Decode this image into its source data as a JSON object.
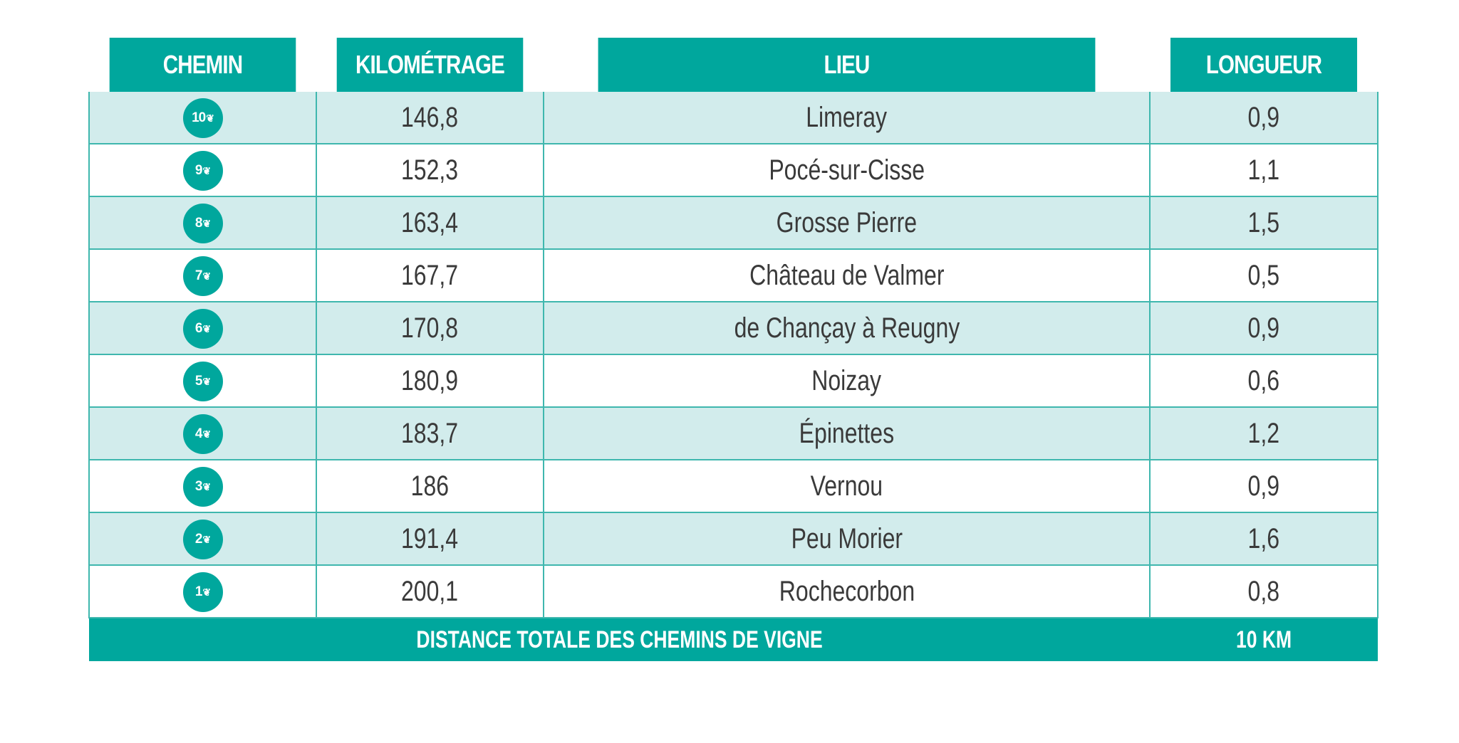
{
  "headers": {
    "chemin": "CHEMIN",
    "kilometrage": "KILOMÉTRAGE",
    "lieu": "LIEU",
    "longueur": "LONGUEUR"
  },
  "rows": [
    {
      "chemin": "10",
      "kilometrage": "146,8",
      "lieu": "Limeray",
      "longueur": "0,9"
    },
    {
      "chemin": "9",
      "kilometrage": "152,3",
      "lieu": "Pocé-sur-Cisse",
      "longueur": "1,1"
    },
    {
      "chemin": "8",
      "kilometrage": "163,4",
      "lieu": "Grosse Pierre",
      "longueur": "1,5"
    },
    {
      "chemin": "7",
      "kilometrage": "167,7",
      "lieu": "Château de Valmer",
      "longueur": "0,5"
    },
    {
      "chemin": "6",
      "kilometrage": "170,8",
      "lieu": "de Chançay à Reugny",
      "longueur": "0,9"
    },
    {
      "chemin": "5",
      "kilometrage": "180,9",
      "lieu": "Noizay",
      "longueur": "0,6"
    },
    {
      "chemin": "4",
      "kilometrage": "183,7",
      "lieu": "Épinettes",
      "longueur": "1,2"
    },
    {
      "chemin": "3",
      "kilometrage": "186",
      "lieu": "Vernou",
      "longueur": "0,9"
    },
    {
      "chemin": "2",
      "kilometrage": "191,4",
      "lieu": "Peu Morier",
      "longueur": "1,6"
    },
    {
      "chemin": "1",
      "kilometrage": "200,1",
      "lieu": "Rochecorbon",
      "longueur": "0,8"
    }
  ],
  "footer": {
    "label": "DISTANCE TOTALE DES CHEMINS DE VIGNE",
    "total": "10 KM"
  },
  "icons": {
    "badge": "grape-icon"
  },
  "colors": {
    "accent": "#00a79d",
    "row_alt": "#d2ecec",
    "border": "#3fb7ae",
    "text": "#3a3a3a"
  }
}
